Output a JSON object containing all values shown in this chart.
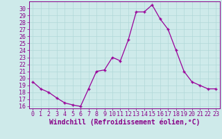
{
  "x": [
    0,
    1,
    2,
    3,
    4,
    5,
    6,
    7,
    8,
    9,
    10,
    11,
    12,
    13,
    14,
    15,
    16,
    17,
    18,
    19,
    20,
    21,
    22,
    23
  ],
  "y": [
    19.5,
    18.5,
    18.0,
    17.2,
    16.5,
    16.2,
    16.0,
    18.5,
    21.0,
    21.2,
    23.0,
    22.5,
    25.5,
    29.5,
    29.5,
    30.5,
    28.5,
    27.0,
    24.0,
    21.0,
    19.5,
    19.0,
    18.5,
    18.5
  ],
  "line_color": "#990099",
  "marker": "+",
  "marker_size": 3.5,
  "marker_lw": 1.0,
  "bg_color": "#ceeaea",
  "grid_color": "#b0d8d8",
  "tick_color": "#880088",
  "xlabel": "Windchill (Refroidissement éolien,°C)",
  "ylabel_ticks": [
    16,
    17,
    18,
    19,
    20,
    21,
    22,
    23,
    24,
    25,
    26,
    27,
    28,
    29,
    30
  ],
  "ylim": [
    15.7,
    31.0
  ],
  "xlim": [
    -0.5,
    23.5
  ],
  "axis_color": "#880088",
  "label_fontsize": 7.0,
  "tick_fontsize": 6.0,
  "line_width": 0.9
}
